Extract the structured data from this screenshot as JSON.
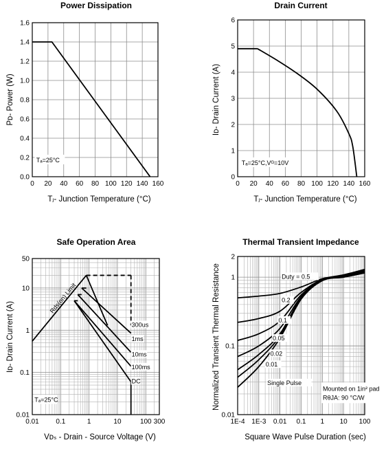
{
  "chart_data": [
    {
      "type": "line",
      "title": "Power Dissipation",
      "xlabel": "Tⱼ- Junction Temperature (°C)",
      "ylabel": "Pᴅ- Power (W)",
      "xlim": [
        0,
        160
      ],
      "ylim": [
        0.0,
        1.6
      ],
      "xticks": [
        "0",
        "20",
        "40",
        "60",
        "80",
        "100",
        "120",
        "140",
        "160"
      ],
      "yticks": [
        "0.0",
        "0.2",
        "0.4",
        "0.6",
        "0.8",
        "1.0",
        "1.2",
        "1.4",
        "1.6"
      ],
      "annotation": "Tₐ=25°C",
      "series": [
        {
          "x": [
            0,
            25,
            150
          ],
          "y": [
            1.4,
            1.4,
            0.0
          ]
        }
      ]
    },
    {
      "type": "line",
      "title": "Drain Current",
      "xlabel": "Tⱼ- Junction Temperature (°C)",
      "ylabel": "Iᴅ- Drain Current (A)",
      "xlim": [
        0,
        160
      ],
      "ylim": [
        0,
        6
      ],
      "xticks": [
        "0",
        "20",
        "40",
        "60",
        "80",
        "100",
        "120",
        "140",
        "160"
      ],
      "yticks": [
        "0",
        "1",
        "2",
        "3",
        "4",
        "5",
        "6"
      ],
      "annotation": "Tₐ=25°C,Vᴳ=10V",
      "series": [
        {
          "x": [
            0,
            25,
            50,
            75,
            100,
            125,
            140,
            145,
            150
          ],
          "y": [
            4.9,
            4.9,
            4.45,
            3.95,
            3.35,
            2.5,
            1.65,
            1.15,
            0.0
          ]
        }
      ]
    },
    {
      "type": "line",
      "title": "Safe Operation Area",
      "xlabel": "Vᴅₛ - Drain - Source Voltage (V)",
      "ylabel": "Iᴅ- Drain Current (A)",
      "xscale": "log",
      "yscale": "log",
      "xlim": [
        0.01,
        300
      ],
      "ylim": [
        0.01,
        50
      ],
      "xticks": [
        "0.01",
        "0.1",
        "1",
        "10",
        "100",
        "300"
      ],
      "yticks": [
        "0.01",
        "0.1",
        "1",
        "10",
        "50"
      ],
      "annotations": [
        "Rds(on) Limit",
        "Tₐ=25°C"
      ],
      "series": [
        {
          "name": "300us",
          "x": [
            0.8,
            30,
            30
          ],
          "y": [
            20,
            20,
            1.3
          ]
        },
        {
          "name": "1ms",
          "x": [
            0.55,
            30
          ],
          "y": [
            10,
            0.85
          ]
        },
        {
          "name": "10ms",
          "x": [
            0.4,
            30
          ],
          "y": [
            7,
            0.3
          ]
        },
        {
          "name": "100ms",
          "x": [
            0.3,
            30
          ],
          "y": [
            5,
            0.14
          ]
        },
        {
          "name": "DC",
          "x": [
            0.01,
            0.3,
            30,
            30
          ],
          "y": [
            0.55,
            5,
            0.06,
            0.01
          ]
        }
      ]
    },
    {
      "type": "line",
      "title": "Thermal Transient Impedance",
      "xlabel": "Square Wave Pulse Duration (sec)",
      "ylabel": "Normalized Transient Thermal Resistance",
      "xscale": "log",
      "yscale": "log",
      "xlim": [
        0.0001,
        100
      ],
      "ylim": [
        0.01,
        2
      ],
      "xticks": [
        "1E-4",
        "1E-3",
        "0.01",
        "0.1",
        "1",
        "10",
        "100"
      ],
      "yticks": [
        "0.01",
        "0.1",
        "1",
        "2"
      ],
      "annotations": [
        "Mounted on 1in² pad",
        "RθJA: 90 °C/W"
      ],
      "series": [
        {
          "name": "Duty = 0.5",
          "x": [
            0.0001,
            0.001,
            0.01,
            0.1,
            1,
            10,
            100
          ],
          "y": [
            0.5,
            0.53,
            0.58,
            0.72,
            0.95,
            1.08,
            1.3
          ]
        },
        {
          "name": "0.2",
          "x": [
            0.0001,
            0.001,
            0.01,
            0.1,
            1,
            10,
            100
          ],
          "y": [
            0.22,
            0.25,
            0.32,
            0.6,
            0.93,
            1.05,
            1.25
          ]
        },
        {
          "name": "0.1",
          "x": [
            0.0001,
            0.001,
            0.01,
            0.1,
            1,
            10,
            100
          ],
          "y": [
            0.12,
            0.15,
            0.23,
            0.55,
            0.92,
            1.03,
            1.22
          ]
        },
        {
          "name": "0.05",
          "x": [
            0.0001,
            0.001,
            0.01,
            0.1,
            1,
            10,
            100
          ],
          "y": [
            0.07,
            0.1,
            0.18,
            0.52,
            0.91,
            1.02,
            1.2
          ]
        },
        {
          "name": "0.02",
          "x": [
            0.0001,
            0.001,
            0.01,
            0.1,
            1,
            10,
            100
          ],
          "y": [
            0.045,
            0.075,
            0.15,
            0.5,
            0.9,
            1.01,
            1.18
          ]
        },
        {
          "name": "0.01",
          "x": [
            0.0001,
            0.001,
            0.01,
            0.1,
            1,
            10,
            100
          ],
          "y": [
            0.035,
            0.063,
            0.14,
            0.49,
            0.9,
            1.0,
            1.16
          ]
        },
        {
          "name": "Single Pulse",
          "x": [
            0.0001,
            0.001,
            0.01,
            0.1,
            1,
            10,
            100
          ],
          "y": [
            0.025,
            0.05,
            0.13,
            0.48,
            0.89,
            1.0,
            1.15
          ]
        }
      ]
    }
  ]
}
